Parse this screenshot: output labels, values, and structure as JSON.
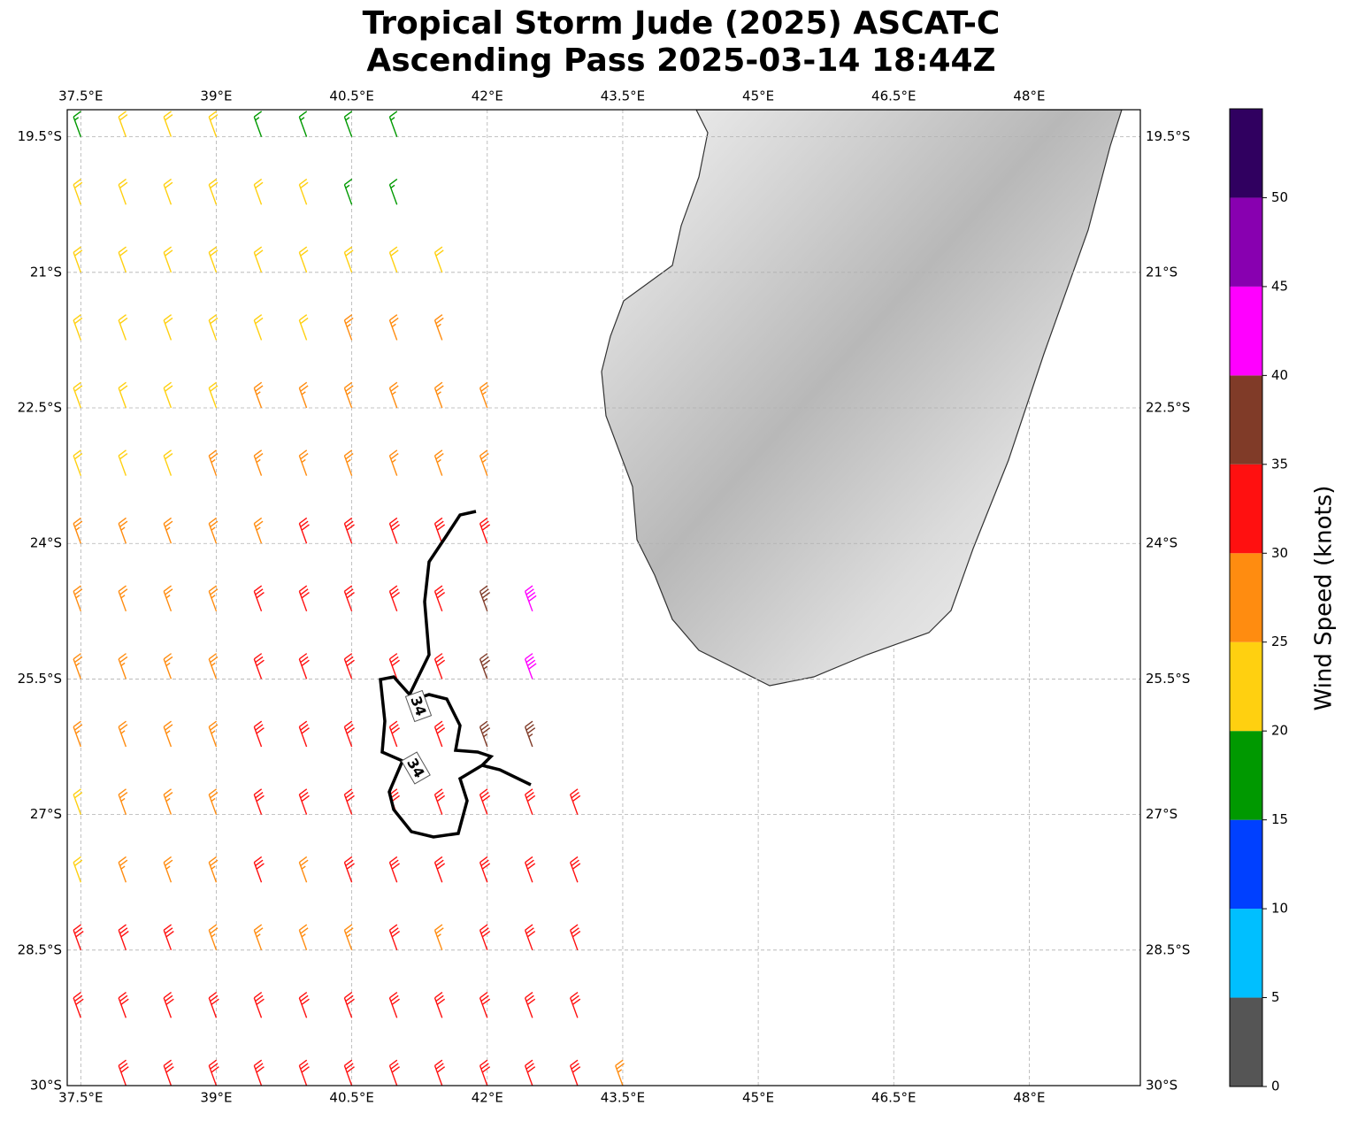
{
  "title": [
    "Tropical Storm Jude (2025) ASCAT-C",
    "Ascending Pass 2025-03-14 18:44Z"
  ],
  "map": {
    "lonlim": [
      37.35,
      49.23
    ],
    "latlim": [
      -19.2,
      -30
    ],
    "lonticks": [
      {
        "value": 37.5,
        "label": "37.5°E"
      },
      {
        "value": 39,
        "label": "39°E"
      },
      {
        "value": 40.5,
        "label": "40.5°E"
      },
      {
        "value": 42,
        "label": "42°E"
      },
      {
        "value": 43.5,
        "label": "43.5°E"
      },
      {
        "value": 45,
        "label": "45°E"
      },
      {
        "value": 46.5,
        "label": "46.5°E"
      },
      {
        "value": 48,
        "label": "48°E"
      }
    ],
    "latticks": [
      {
        "value": -19.5,
        "label": "19.5°S"
      },
      {
        "value": -21,
        "label": "21°S"
      },
      {
        "value": -22.5,
        "label": "22.5°S"
      },
      {
        "value": -24,
        "label": "24°S"
      },
      {
        "value": -25.5,
        "label": "25.5°S"
      },
      {
        "value": -27,
        "label": "27°S"
      },
      {
        "value": -28.5,
        "label": "28.5°S"
      },
      {
        "value": -30,
        "label": "30°S"
      }
    ]
  },
  "barbs": {
    "lons": [
      37.5,
      38,
      38.5,
      39,
      39.5,
      40,
      40.5,
      41,
      41.5,
      42,
      42.5,
      43,
      43.5
    ],
    "lats": [
      -19.5,
      -20.25,
      -21,
      -21.75,
      -22.5,
      -23.25,
      -24,
      -24.75,
      -25.5,
      -26.25,
      -27,
      -27.75,
      -28.5,
      -29.25,
      -30
    ],
    "speeds": [
      [
        17,
        22,
        22,
        22,
        18,
        18,
        18,
        17,
        null,
        null,
        null,
        null,
        null
      ],
      [
        22,
        22,
        22,
        24,
        22,
        22,
        18,
        18,
        null,
        null,
        null,
        null,
        null
      ],
      [
        22,
        22,
        22,
        22,
        22,
        22,
        22,
        24,
        22,
        null,
        null,
        null,
        null
      ],
      [
        22,
        22,
        22,
        24,
        24,
        24,
        26,
        27,
        27,
        null,
        null,
        null,
        null
      ],
      [
        22,
        22,
        24,
        24,
        26,
        26,
        27,
        27,
        28,
        28,
        null,
        null,
        null
      ],
      [
        23,
        23,
        24,
        26,
        27,
        27,
        28,
        28,
        28,
        28,
        null,
        null,
        null
      ],
      [
        29,
        27,
        27,
        28,
        28,
        31,
        32,
        32,
        33,
        34,
        null,
        null,
        null
      ],
      [
        28,
        28,
        29,
        29,
        31,
        32,
        32,
        33,
        33,
        37,
        43,
        null,
        null
      ],
      [
        26,
        27,
        28,
        29,
        32,
        32,
        33,
        33,
        34,
        37,
        43,
        null,
        null
      ],
      [
        25,
        27,
        28,
        29,
        31,
        32,
        33,
        33,
        33,
        36,
        37,
        null,
        null
      ],
      [
        24,
        26,
        27,
        28,
        30,
        32,
        32,
        33,
        33,
        33,
        33,
        33,
        null
      ],
      [
        23,
        25,
        27,
        28,
        30,
        29,
        30,
        32,
        32,
        32,
        33,
        33,
        null
      ],
      [
        32,
        32,
        30,
        29,
        28,
        27,
        28,
        30,
        28,
        32,
        32,
        33,
        null
      ],
      [
        33,
        33,
        32,
        32,
        32,
        32,
        32,
        32,
        32,
        32,
        30,
        32,
        null
      ],
      [
        null,
        34,
        34,
        33,
        33,
        33,
        33,
        33,
        32,
        32,
        32,
        32,
        29
      ]
    ]
  },
  "contour_labels": [
    "34",
    "34"
  ],
  "colorbar": {
    "label": "Wind Speed (knots)",
    "boundaries": [
      0,
      5,
      10,
      15,
      20,
      25,
      30,
      35,
      40,
      45,
      50,
      55
    ],
    "colors": [
      "#555555",
      "#00bfff",
      "#0040ff",
      "#009900",
      "#ffd010",
      "#ff8c10",
      "#ff1010",
      "#803b28",
      "#ff00ff",
      "#8800b0",
      "#300060"
    ],
    "ticks": [
      0,
      5,
      10,
      15,
      20,
      25,
      30,
      35,
      40,
      45,
      50
    ]
  }
}
